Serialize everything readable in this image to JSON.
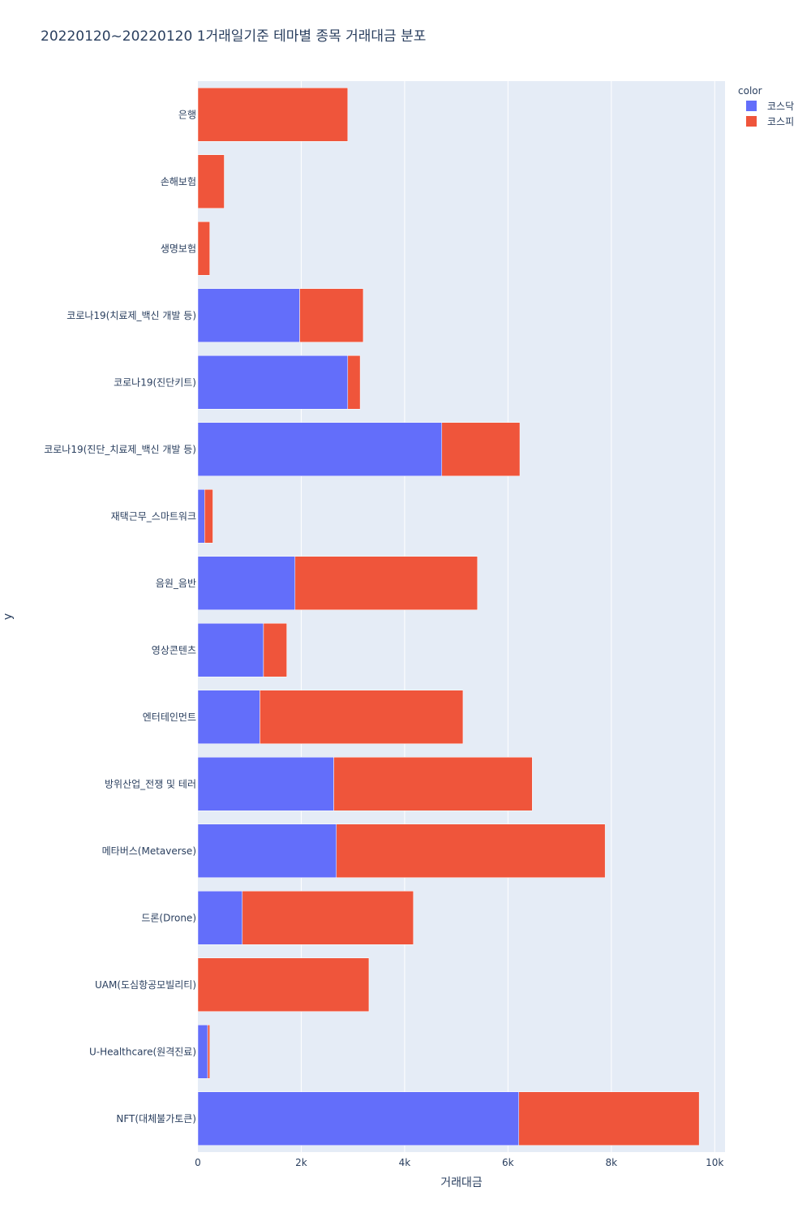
{
  "chart_data": {
    "type": "bar",
    "orientation": "horizontal",
    "barmode": "stack",
    "title": "20220120~20220120 1거래일기준 테마별 종목 거래대금 분포",
    "xlabel": "거래대금",
    "ylabel": "y",
    "xlim": [
      0,
      10200
    ],
    "x_ticks": [
      0,
      2000,
      4000,
      6000,
      8000,
      10000
    ],
    "x_tick_labels": [
      "0",
      "2k",
      "4k",
      "6k",
      "8k",
      "10k"
    ],
    "grid": true,
    "legend": {
      "title": "color",
      "placement": "top-right"
    },
    "categories": [
      "은행",
      "손해보험",
      "생명보험",
      "코로나19(치료제_백신 개발 등)",
      "코로나19(진단키트)",
      "코로나19(진단_치료제_백신 개발 등)",
      "재택근무_스마트워크",
      "음원_음반",
      "영상콘텐츠",
      "엔터테인먼트",
      "방위산업_전쟁 및 테러",
      "메타버스(Metaverse)",
      "드론(Drone)",
      "UAM(도심항공모빌리티)",
      "U-Healthcare(원격진료)",
      "NFT(대체불가토큰)"
    ],
    "series": [
      {
        "name": "코스닥",
        "color": "#636efa",
        "values": [
          0,
          0,
          0,
          1970,
          2900,
          4720,
          130,
          1880,
          1270,
          1200,
          2630,
          2680,
          860,
          0,
          190,
          6210
        ]
      },
      {
        "name": "코스피",
        "color": "#ef553b",
        "values": [
          2900,
          510,
          230,
          1230,
          240,
          1510,
          160,
          3530,
          450,
          3930,
          3840,
          5200,
          3310,
          3310,
          40,
          3490
        ]
      }
    ]
  }
}
